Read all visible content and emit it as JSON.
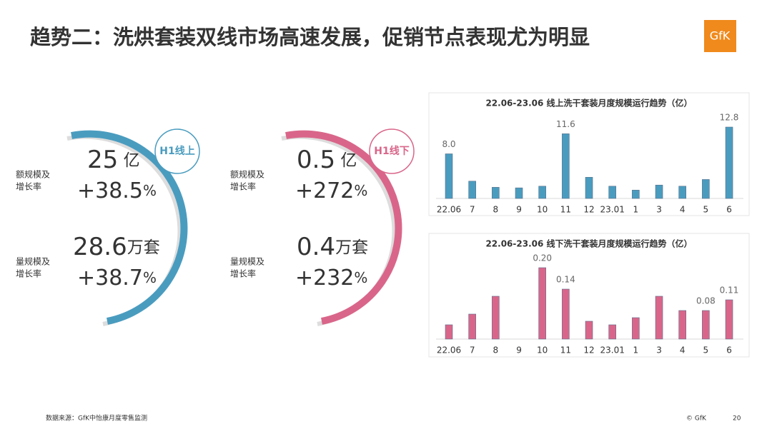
{
  "header": {
    "title": "趋势二：洗烘套装双线市场高速发展，促销节点表现尤为明显",
    "logo": "GfK"
  },
  "kpi_panels": [
    {
      "badge": "H1线上",
      "color": "#4a9cbf",
      "rows": [
        {
          "label": [
            "额规模及",
            "增长率"
          ],
          "value": "25",
          "unit": " 亿",
          "growth": "+38.5",
          "growth_unit": "%"
        },
        {
          "label": [
            "量规模及",
            "增长率"
          ],
          "value": "28.6",
          "unit": "万套",
          "growth": "+38.7",
          "growth_unit": "%"
        }
      ]
    },
    {
      "badge": "H1线下",
      "color": "#d9668a",
      "rows": [
        {
          "label": [
            "额规模及",
            "增长率"
          ],
          "value": "0.5",
          "unit": " 亿",
          "growth": "+272",
          "growth_unit": "%"
        },
        {
          "label": [
            "量规模及",
            "增长率"
          ],
          "value": "0.4",
          "unit": "万套",
          "growth": "+232",
          "growth_unit": "%"
        }
      ]
    }
  ],
  "chart_data": [
    {
      "type": "bar",
      "title": "22.06-23.06 线上洗干套装月度规模运行趋势（亿）",
      "color": "#4a9cbf",
      "categories": [
        "22.06",
        "7",
        "8",
        "9",
        "10",
        "11",
        "12",
        "23.01",
        "1",
        "3",
        "4",
        "5",
        "6"
      ],
      "values": [
        8.0,
        3.1,
        2.0,
        1.9,
        2.2,
        11.6,
        3.8,
        2.2,
        1.5,
        2.4,
        2.2,
        3.4,
        12.8
      ],
      "value_labels": [
        "8.0",
        null,
        null,
        null,
        null,
        "11.6",
        null,
        null,
        null,
        null,
        null,
        null,
        "12.8"
      ]
    },
    {
      "type": "bar",
      "title": "22.06-23.06 线下洗干套装月度规模运行趋势（亿）",
      "color": "#d9668a",
      "categories": [
        "22.06",
        "7",
        "8",
        "9",
        "10",
        "11",
        "12",
        "23.01",
        "1",
        "3",
        "4",
        "5",
        "6"
      ],
      "values": [
        0.04,
        0.07,
        0.12,
        0,
        0.2,
        0.14,
        0.05,
        0.04,
        0.06,
        0.12,
        0.08,
        0.08,
        0.11
      ],
      "value_labels": [
        null,
        null,
        null,
        null,
        "0.20",
        "0.14",
        null,
        null,
        null,
        null,
        null,
        "0.08",
        "0.11"
      ]
    }
  ],
  "footer": {
    "source": "数据来源：GfK中怡康月度零售监测",
    "copyright": "© GfK",
    "page": "20"
  }
}
